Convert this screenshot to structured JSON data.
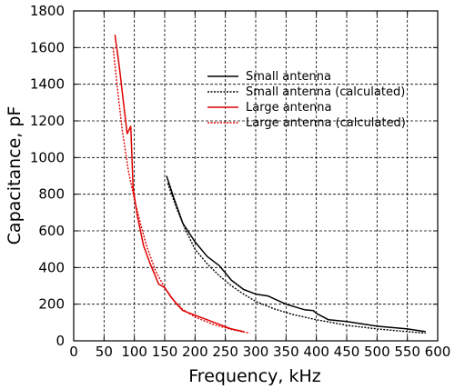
{
  "chart_data": {
    "type": "line",
    "xlabel": "Frequency, kHz",
    "ylabel": "Capacitance, pF",
    "xlim": [
      0,
      600
    ],
    "ylim": [
      0,
      1800
    ],
    "xticks": [
      0,
      50,
      100,
      150,
      200,
      250,
      300,
      350,
      400,
      450,
      500,
      550,
      600
    ],
    "yticks": [
      0,
      200,
      400,
      600,
      800,
      1000,
      1200,
      1400,
      1600,
      1800
    ],
    "grid": true,
    "legend_position": "top-right",
    "series": [
      {
        "name": "Small antenna",
        "color": "#000000",
        "style": "solid",
        "x": [
          153,
          165,
          180,
          200,
          220,
          240,
          250,
          260,
          280,
          300,
          320,
          350,
          380,
          395,
          400,
          420,
          450,
          500,
          550,
          580
        ],
        "y": [
          900,
          780,
          640,
          540,
          460,
          410,
          370,
          330,
          280,
          255,
          245,
          200,
          170,
          165,
          150,
          115,
          105,
          80,
          65,
          50
        ]
      },
      {
        "name": "Small antenna (calculated)",
        "color": "#000000",
        "style": "dotted",
        "x": [
          155,
          170,
          185,
          200,
          220,
          240,
          260,
          280,
          300,
          330,
          360,
          400,
          450,
          500,
          550,
          580
        ],
        "y": [
          860,
          720,
          600,
          500,
          420,
          355,
          300,
          255,
          215,
          175,
          145,
          115,
          85,
          65,
          50,
          42
        ]
      },
      {
        "name": "Large antenna",
        "color": "#e00000",
        "style": "solid",
        "x": [
          68,
          75,
          82,
          88,
          94,
          98,
          105,
          115,
          125,
          140,
          150,
          160,
          170,
          180,
          200,
          220,
          240,
          260,
          280
        ],
        "y": [
          1670,
          1500,
          1300,
          1130,
          1170,
          830,
          680,
          520,
          430,
          310,
          290,
          240,
          200,
          165,
          140,
          115,
          90,
          65,
          50
        ]
      },
      {
        "name": "Large antenna (calculated)",
        "color": "#e00000",
        "style": "dotted",
        "x": [
          65,
          72,
          80,
          90,
          100,
          110,
          120,
          135,
          150,
          165,
          180,
          200,
          230,
          260,
          290
        ],
        "y": [
          1600,
          1380,
          1150,
          930,
          770,
          640,
          520,
          380,
          290,
          220,
          170,
          130,
          90,
          62,
          42
        ]
      }
    ]
  }
}
